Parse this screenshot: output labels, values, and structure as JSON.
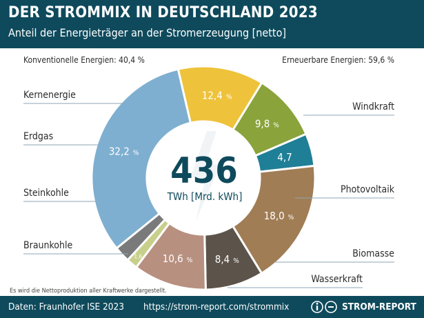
{
  "header": {
    "title": "DER STROMMIX IN DEUTSCHLAND 2023",
    "subtitle": "Anteil der Energieträger an der Stromerzeugung [netto]"
  },
  "groups": {
    "conventional": "Konventionelle Energien: 40,4 %",
    "renewable": "Erneuerbare Energien: 59,6 %"
  },
  "note": "Es wird die Nettoproduktion aller Kraftwerke dargestellt.",
  "footer": {
    "source": "Daten: Fraunhofer ISE 2023",
    "url": "https://strom-report.com/strommix",
    "brand": "STROM-REPORT"
  },
  "chart_data": {
    "type": "pie",
    "center_value": "436",
    "center_unit": "TWh [Mrd. kWh]",
    "slices": [
      {
        "label": "Windkraft",
        "value": 32.2,
        "display": "32,2",
        "color": "#7eafd0"
      },
      {
        "label": "Photovoltaik",
        "value": 12.4,
        "display": "12,4",
        "color": "#eec23a"
      },
      {
        "label": "Biomasse",
        "value": 9.8,
        "display": "9,8",
        "color": "#8aa33b"
      },
      {
        "label": "Wasserkraft",
        "value": 4.7,
        "display": "4,7",
        "color": "#1f7f96"
      },
      {
        "label": "Braunkohle",
        "value": 18.0,
        "display": "18,0",
        "color": "#a07d55"
      },
      {
        "label": "Steinkohle",
        "value": 8.4,
        "display": "8,4",
        "color": "#5c544a"
      },
      {
        "label": "Erdgas",
        "value": 10.6,
        "display": "10,6",
        "color": "#b89080"
      },
      {
        "label": "",
        "value": 1.6,
        "display": "1,6",
        "color": "#c8cf8a"
      },
      {
        "label": "Kernenergie",
        "value": 2.3,
        "display": "",
        "color": "#7a7a7a"
      }
    ],
    "percent_sign": "%"
  },
  "colors": {
    "header": "#0e4a5c",
    "label_text": "#2b2b2b"
  }
}
